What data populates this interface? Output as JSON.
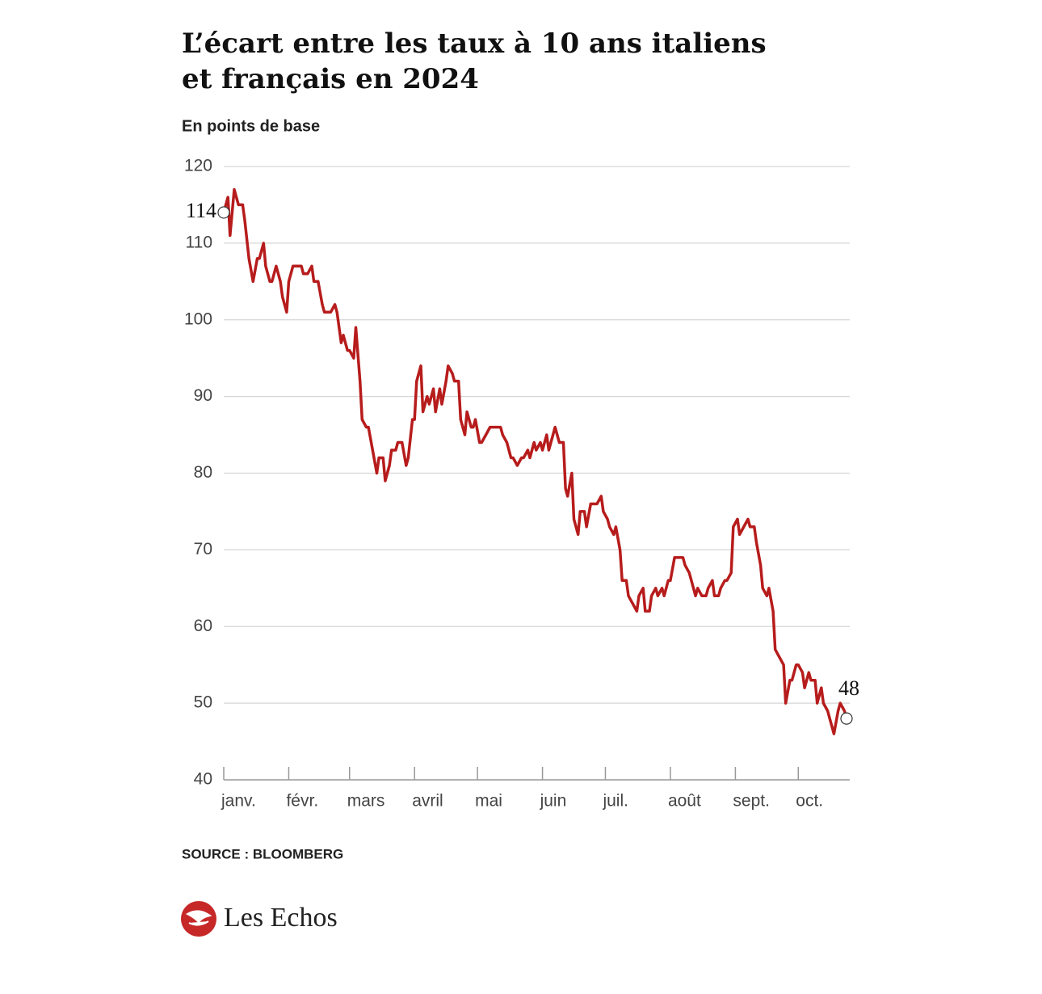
{
  "chart_data": {
    "type": "line",
    "title": [
      "L’écart entre les taux à 10 ans italiens",
      "et français en 2024"
    ],
    "subtitle": "En points de base",
    "source": "SOURCE : BLOOMBERG",
    "brand": "Les Echos",
    "annotations": [
      "114",
      "48"
    ],
    "x": [
      1,
      3,
      4,
      6,
      8,
      10,
      11,
      13,
      15,
      17,
      18,
      20,
      21,
      23,
      24,
      26,
      28,
      29,
      31,
      32,
      34,
      38,
      39,
      41,
      43,
      44,
      46,
      48,
      49,
      52,
      54,
      55,
      57,
      58,
      60,
      61,
      63,
      64,
      66,
      67,
      69,
      70,
      72,
      74,
      75,
      77,
      78,
      80,
      81,
      83,
      84,
      86,
      88,
      89,
      91,
      92,
      93,
      95,
      96,
      98,
      99,
      101,
      102,
      104,
      105,
      107,
      108,
      110,
      111,
      113,
      114,
      116,
      117,
      119,
      120,
      121,
      123,
      124,
      126,
      128,
      133,
      134,
      136,
      138,
      139,
      141,
      143,
      144,
      146,
      147,
      149,
      150,
      152,
      153,
      155,
      156,
      158,
      159,
      161,
      163,
      164,
      165,
      167,
      168,
      170,
      171,
      173,
      174,
      176,
      179,
      181,
      182,
      184,
      185,
      187,
      188,
      190,
      191,
      193,
      194,
      196,
      198,
      199,
      201,
      202,
      204,
      205,
      207,
      208,
      210,
      211,
      213,
      214,
      216,
      220,
      221,
      223,
      224,
      226,
      227,
      229,
      231,
      232,
      234,
      235,
      237,
      238,
      240,
      241,
      243,
      244,
      246,
      247,
      249,
      251,
      252,
      254,
      255,
      257,
      258,
      260,
      261,
      263,
      264,
      266,
      268,
      269,
      271,
      272,
      274,
      275,
      277,
      278,
      280,
      281,
      283,
      284,
      286,
      287,
      289,
      291,
      292,
      294,
      295,
      297,
      298
    ],
    "series": [
      {
        "name": "Écart",
        "color": "#b71c1c",
        "values": [
          114,
          116,
          111,
          117,
          115,
          115,
          113,
          108,
          105,
          108,
          108,
          110,
          107,
          105,
          105,
          107,
          105,
          103,
          101,
          105,
          107,
          107,
          106,
          106,
          107,
          105,
          105,
          102,
          101,
          101,
          102,
          101,
          97,
          98,
          96,
          96,
          95,
          99,
          92,
          87,
          86,
          86,
          83,
          80,
          82,
          82,
          79,
          81,
          83,
          83,
          84,
          84,
          81,
          82,
          87,
          87,
          92,
          94,
          88,
          90,
          89,
          91,
          88,
          91,
          89,
          92,
          94,
          93,
          92,
          92,
          87,
          85,
          88,
          86,
          86,
          87,
          84,
          84,
          85,
          86,
          86,
          85,
          84,
          82,
          82,
          81,
          82,
          82,
          83,
          82,
          84,
          83,
          84,
          83,
          85,
          83,
          85,
          86,
          84,
          84,
          78,
          77,
          80,
          74,
          72,
          75,
          75,
          73,
          76,
          76,
          77,
          75,
          74,
          73,
          72,
          73,
          70,
          66,
          66,
          64,
          63,
          62,
          64,
          65,
          62,
          62,
          64,
          65,
          64,
          65,
          64,
          66,
          66,
          69,
          69,
          68,
          67,
          66,
          64,
          65,
          64,
          64,
          65,
          66,
          64,
          64,
          65,
          66,
          66,
          67,
          73,
          74,
          72,
          73,
          74,
          73,
          73,
          71,
          68,
          65,
          64,
          65,
          62,
          57,
          56,
          55,
          50,
          53,
          53,
          55,
          55,
          54,
          52,
          54,
          53,
          53,
          50,
          52,
          50,
          49,
          47,
          46,
          49,
          50,
          49,
          48
        ]
      }
    ],
    "xlim": [
      1,
      298
    ],
    "xticks": [
      {
        "value": 1,
        "label": "janv."
      },
      {
        "value": 32,
        "label": "févr."
      },
      {
        "value": 61,
        "label": "mars"
      },
      {
        "value": 92,
        "label": "avril"
      },
      {
        "value": 122,
        "label": "mai"
      },
      {
        "value": 153,
        "label": "juin"
      },
      {
        "value": 183,
        "label": "juil."
      },
      {
        "value": 214,
        "label": "août"
      },
      {
        "value": 245,
        "label": "sept."
      },
      {
        "value": 275,
        "label": "oct."
      }
    ],
    "ylim": [
      40,
      120
    ],
    "yticks": [
      40,
      50,
      60,
      70,
      80,
      90,
      100,
      110,
      120
    ],
    "grid": true
  }
}
